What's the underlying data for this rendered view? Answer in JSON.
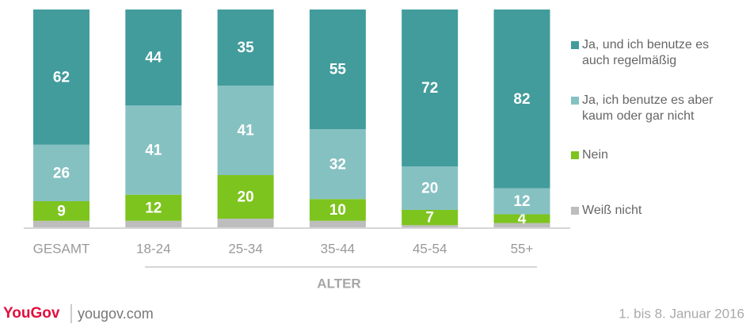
{
  "chart_data": {
    "type": "bar",
    "stacked": true,
    "categories": [
      "GESAMT",
      "18-24",
      "25-34",
      "35-44",
      "45-54",
      "55+"
    ],
    "xlabel": "ALTER",
    "ylim": [
      0,
      100
    ],
    "legend": "right",
    "series": [
      {
        "name": "Ja, und ich benutze es auch regelmäßig",
        "color": "#429c9c",
        "values": [
          62,
          44,
          35,
          55,
          72,
          82
        ]
      },
      {
        "name": "Ja, ich benutze es aber kaum oder gar nicht",
        "color": "#86c1c2",
        "values": [
          26,
          41,
          41,
          32,
          20,
          12
        ]
      },
      {
        "name": "Nein",
        "color": "#7dc41e",
        "values": [
          9,
          12,
          20,
          10,
          7,
          4
        ]
      },
      {
        "name": "Weiß nicht",
        "color": "#bdbdbd",
        "values": [
          3,
          3,
          4,
          3,
          1,
          2
        ],
        "data_labels": false
      }
    ]
  },
  "footer": {
    "brand": "YouGov",
    "site": "yougov.com",
    "date": "1. bis 8. Januar 2016"
  }
}
